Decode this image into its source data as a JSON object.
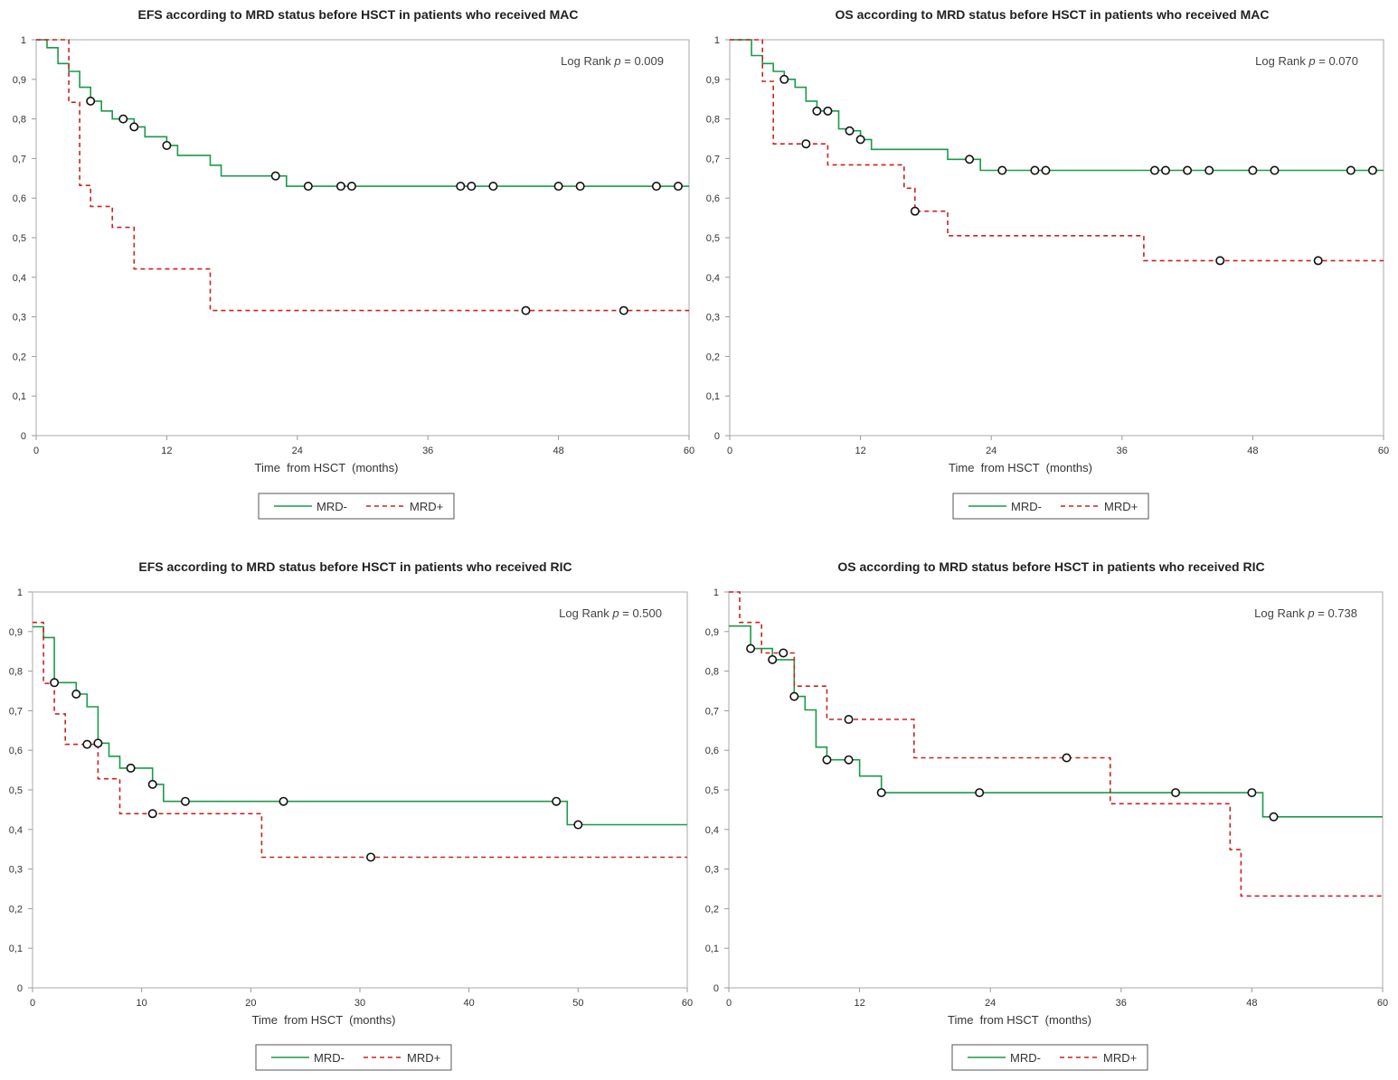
{
  "chart_data": [
    {
      "type": "line",
      "subtype": "kaplan-meier",
      "title": "EFS according to MRD status before HSCT in patients who received MAC",
      "xlabel": "Time  from HSCT  (months)",
      "ylabel": "",
      "xlim": [
        0,
        60
      ],
      "ylim": [
        0,
        1
      ],
      "xticks": [
        "0",
        "12",
        "24",
        "36",
        "48",
        "60"
      ],
      "xtick_values": [
        0,
        12,
        24,
        36,
        48,
        60
      ],
      "yticks": [
        "0",
        "0,1",
        "0,2",
        "0,3",
        "0,4",
        "0,5",
        "0,6",
        "0,7",
        "0,8",
        "0,9",
        "1"
      ],
      "annotation": {
        "prefix": "Log Rank ",
        "p": "p",
        "value": " = 0.009"
      },
      "legend": [
        "MRD-",
        "MRD+"
      ],
      "series": [
        {
          "name": "MRD-",
          "color": "#1a9a4a",
          "dash": false,
          "x": [
            0,
            1,
            2,
            3,
            4,
            5,
            6,
            7,
            8,
            9,
            10,
            12,
            13,
            16,
            17,
            23,
            60
          ],
          "y": [
            1,
            0.98,
            0.94,
            0.92,
            0.88,
            0.845,
            0.82,
            0.8,
            0.8,
            0.78,
            0.755,
            0.733,
            0.708,
            0.683,
            0.656,
            0.63,
            0.63
          ],
          "censored_x": [
            5,
            8,
            9,
            12,
            22,
            25,
            28,
            29,
            39,
            40,
            42,
            48,
            50,
            57,
            59
          ]
        },
        {
          "name": "MRD+",
          "color": "#cc2222",
          "dash": true,
          "x": [
            0,
            3,
            4,
            5,
            7,
            9,
            16,
            60
          ],
          "y": [
            1,
            0.842,
            0.632,
            0.579,
            0.526,
            0.421,
            0.316,
            0.316
          ],
          "censored_x": [
            45,
            54
          ]
        }
      ]
    },
    {
      "type": "line",
      "subtype": "kaplan-meier",
      "title": "OS according to MRD status before HSCT in patients who received MAC",
      "xlabel": "Time  from HSCT  (months)",
      "ylabel": "",
      "xlim": [
        0,
        60
      ],
      "ylim": [
        0,
        1
      ],
      "xticks": [
        "0",
        "12",
        "24",
        "36",
        "48",
        "60"
      ],
      "xtick_values": [
        0,
        12,
        24,
        36,
        48,
        60
      ],
      "yticks": [
        "0",
        "0,1",
        "0,2",
        "0,3",
        "0,4",
        "0,5",
        "0,6",
        "0,7",
        "0,8",
        "0,9",
        "1"
      ],
      "annotation": {
        "prefix": "Log Rank ",
        "p": "p",
        "value": " = 0.070"
      },
      "legend": [
        "MRD-",
        "MRD+"
      ],
      "series": [
        {
          "name": "MRD-",
          "color": "#1a9a4a",
          "dash": false,
          "x": [
            0,
            2,
            3,
            4,
            5,
            6,
            7,
            8,
            10,
            11,
            12,
            13,
            20,
            23,
            60
          ],
          "y": [
            1,
            0.96,
            0.94,
            0.92,
            0.9,
            0.88,
            0.845,
            0.82,
            0.775,
            0.77,
            0.748,
            0.723,
            0.698,
            0.67,
            0.67
          ],
          "censored_x": [
            5,
            8,
            9,
            11,
            12,
            22,
            25,
            28,
            29,
            39,
            40,
            42,
            44,
            48,
            50,
            57,
            59
          ]
        },
        {
          "name": "MRD+",
          "color": "#cc2222",
          "dash": true,
          "x": [
            0,
            3,
            4,
            9,
            16,
            17,
            20,
            38,
            60
          ],
          "y": [
            1,
            0.895,
            0.737,
            0.684,
            0.625,
            0.567,
            0.505,
            0.442,
            0.442
          ],
          "censored_x": [
            7,
            17,
            45,
            54
          ]
        }
      ]
    },
    {
      "type": "line",
      "subtype": "kaplan-meier",
      "title": "EFS according to MRD status before HSCT in patients who received RIC",
      "xlabel": "Time  from HSCT  (months)",
      "ylabel": "",
      "xlim": [
        0,
        60
      ],
      "ylim": [
        0,
        1
      ],
      "xticks": [
        "0",
        "10",
        "20",
        "30",
        "40",
        "50",
        "60"
      ],
      "xtick_values": [
        0,
        10,
        20,
        30,
        40,
        50,
        60
      ],
      "yticks": [
        "0",
        "0,1",
        "0,2",
        "0,3",
        "0,4",
        "0,5",
        "0,6",
        "0,7",
        "0,8",
        "0,9",
        "1"
      ],
      "annotation": {
        "prefix": "Log Rank ",
        "p": "p",
        "value": " = 0.500"
      },
      "legend": [
        "MRD-",
        "MRD+"
      ],
      "series": [
        {
          "name": "MRD-",
          "color": "#1a9a4a",
          "dash": false,
          "x": [
            0,
            1,
            2,
            4,
            5,
            6,
            7,
            8,
            11,
            12,
            49,
            60
          ],
          "y": [
            0.912,
            0.885,
            0.771,
            0.742,
            0.71,
            0.618,
            0.585,
            0.555,
            0.514,
            0.471,
            0.412,
            0.412
          ],
          "censored_x": [
            2,
            4,
            6,
            9,
            11,
            14,
            23,
            48,
            50
          ]
        },
        {
          "name": "MRD+",
          "color": "#cc2222",
          "dash": true,
          "x": [
            0,
            1,
            2,
            3,
            6,
            8,
            21,
            60
          ],
          "y": [
            0.923,
            0.769,
            0.692,
            0.615,
            0.528,
            0.44,
            0.33,
            0.33
          ],
          "censored_x": [
            5,
            11,
            31
          ]
        }
      ]
    },
    {
      "type": "line",
      "subtype": "kaplan-meier",
      "title": "OS according to MRD status before HSCT in patients who received RIC",
      "xlabel": "Time  from HSCT  (months)",
      "ylabel": "",
      "xlim": [
        0,
        60
      ],
      "ylim": [
        0,
        1
      ],
      "xticks": [
        "0",
        "12",
        "24",
        "36",
        "48",
        "60"
      ],
      "xtick_values": [
        0,
        12,
        24,
        36,
        48,
        60
      ],
      "yticks": [
        "0",
        "0,1",
        "0,2",
        "0,3",
        "0,4",
        "0,5",
        "0,6",
        "0,7",
        "0,8",
        "0,9",
        "1"
      ],
      "annotation": {
        "prefix": "Log Rank ",
        "p": "p",
        "value": " = 0.738"
      },
      "legend": [
        "MRD-",
        "MRD+"
      ],
      "series": [
        {
          "name": "MRD-",
          "color": "#1a9a4a",
          "dash": false,
          "x": [
            0,
            2,
            4,
            6,
            7,
            8,
            9,
            12,
            14,
            49,
            60
          ],
          "y": [
            0.914,
            0.857,
            0.829,
            0.736,
            0.702,
            0.608,
            0.576,
            0.535,
            0.493,
            0.432,
            0.432
          ],
          "censored_x": [
            2,
            4,
            6,
            9,
            11,
            14,
            23,
            41,
            48,
            50
          ]
        },
        {
          "name": "MRD+",
          "color": "#cc2222",
          "dash": true,
          "x": [
            0,
            1,
            3,
            6,
            9,
            17,
            35,
            46,
            47,
            60
          ],
          "y": [
            1,
            0.923,
            0.846,
            0.762,
            0.678,
            0.581,
            0.465,
            0.349,
            0.232,
            0.232
          ],
          "censored_x": [
            5,
            11,
            31
          ]
        }
      ]
    }
  ]
}
